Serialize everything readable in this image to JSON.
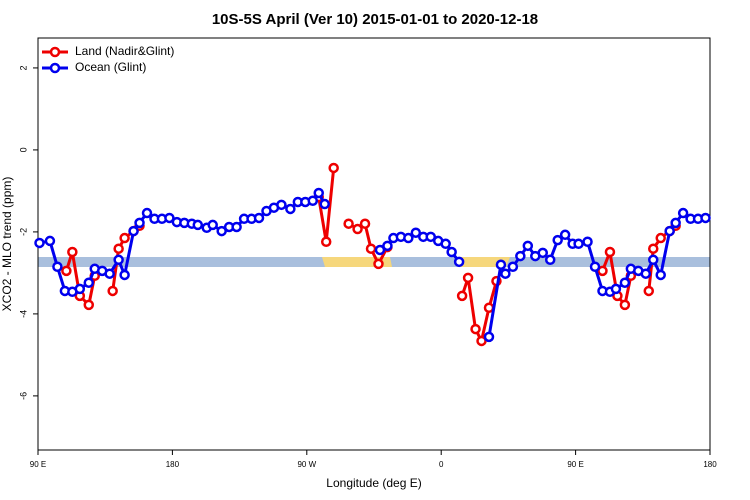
{
  "chart_data": {
    "type": "line",
    "title": "10S-5S April (Ver 10)   2015-01-01 to 2020-12-18",
    "x_label": "Longitude (deg E)",
    "y_label": "XCO2 - MLO trend (ppm)",
    "xlim": [
      90,
      540
    ],
    "xticks": [
      {
        "value": 90,
        "label": "90 E"
      },
      {
        "value": 180,
        "label": "180"
      },
      {
        "value": 270,
        "label": "90 W"
      },
      {
        "value": 360,
        "label": "0"
      },
      {
        "value": 450,
        "label": "90 E"
      },
      {
        "value": 540,
        "label": "180"
      }
    ],
    "ylim": [
      -7.32,
      2.73
    ],
    "yticks": [
      2,
      0,
      -2,
      -4,
      -6
    ],
    "legend": "top-left",
    "series": [
      {
        "name": "Land (Nadir&Glint)",
        "color": "#ee0000",
        "x": [
          109,
          113,
          118,
          124,
          128,
          null,
          140,
          144,
          148,
          154,
          158,
          null,
          278,
          283,
          288,
          null,
          298,
          304,
          309,
          313,
          318,
          324,
          null,
          374,
          378,
          383,
          387,
          392,
          397,
          null,
          468,
          473,
          478,
          483,
          487,
          null,
          499,
          502,
          507,
          513,
          517
        ],
        "values": [
          -2.95,
          -2.49,
          -3.56,
          -3.78,
          -3.07,
          null,
          -3.44,
          -2.41,
          -2.15,
          -1.98,
          -1.85,
          null,
          -1.15,
          -2.24,
          -0.44,
          null,
          -1.8,
          -1.93,
          -1.8,
          -2.41,
          -2.78,
          -2.37,
          null,
          -3.56,
          -3.12,
          -4.37,
          -4.66,
          -3.85,
          -3.2,
          null,
          -2.95,
          -2.49,
          -3.56,
          -3.78,
          -3.07,
          null,
          -3.44,
          -2.41,
          -2.15,
          -1.98,
          -1.85
        ]
      },
      {
        "name": "Ocean (Glint)",
        "color": "#0000ee",
        "x": [
          91,
          98,
          103,
          108,
          113,
          118,
          124,
          128,
          133,
          138,
          144,
          148,
          154,
          158,
          163,
          168,
          173,
          178,
          183,
          188,
          193,
          197,
          203,
          207,
          213,
          218,
          223,
          228,
          233,
          238,
          243,
          248,
          253,
          259,
          264,
          269,
          274,
          278,
          282,
          null,
          319,
          324,
          328,
          333,
          338,
          343,
          348,
          353,
          358,
          363,
          367,
          372,
          null,
          392,
          400,
          403,
          408,
          413,
          418,
          423,
          428,
          433,
          438,
          443,
          448,
          452,
          458,
          463,
          468,
          473,
          477,
          483,
          487,
          492,
          497,
          502,
          507,
          513,
          517,
          522,
          527,
          532,
          537
        ],
        "values": [
          -2.27,
          -2.22,
          -2.85,
          -3.44,
          -3.46,
          -3.39,
          -3.24,
          -2.9,
          -2.95,
          -3.02,
          -2.68,
          -3.05,
          -1.98,
          -1.78,
          -1.54,
          -1.68,
          -1.68,
          -1.66,
          -1.76,
          -1.78,
          -1.8,
          -1.83,
          -1.9,
          -1.83,
          -1.98,
          -1.88,
          -1.88,
          -1.68,
          -1.68,
          -1.66,
          -1.49,
          -1.41,
          -1.34,
          -1.44,
          -1.27,
          -1.27,
          -1.24,
          -1.05,
          -1.32,
          null,
          -2.44,
          -2.34,
          -2.15,
          -2.12,
          -2.15,
          -2.02,
          -2.12,
          -2.12,
          -2.22,
          -2.29,
          -2.49,
          -2.73,
          null,
          -4.56,
          -2.8,
          -3.02,
          -2.85,
          -2.59,
          -2.34,
          -2.59,
          -2.51,
          -2.68,
          -2.2,
          -2.07,
          -2.29,
          -2.29,
          -2.24,
          -2.85,
          -3.44,
          -3.46,
          -3.39,
          -3.24,
          -2.9,
          -2.95,
          -3.02,
          -2.68,
          -3.05,
          -1.98,
          -1.78,
          -1.54,
          -1.68,
          -1.68,
          -1.66
        ]
      }
    ]
  }
}
